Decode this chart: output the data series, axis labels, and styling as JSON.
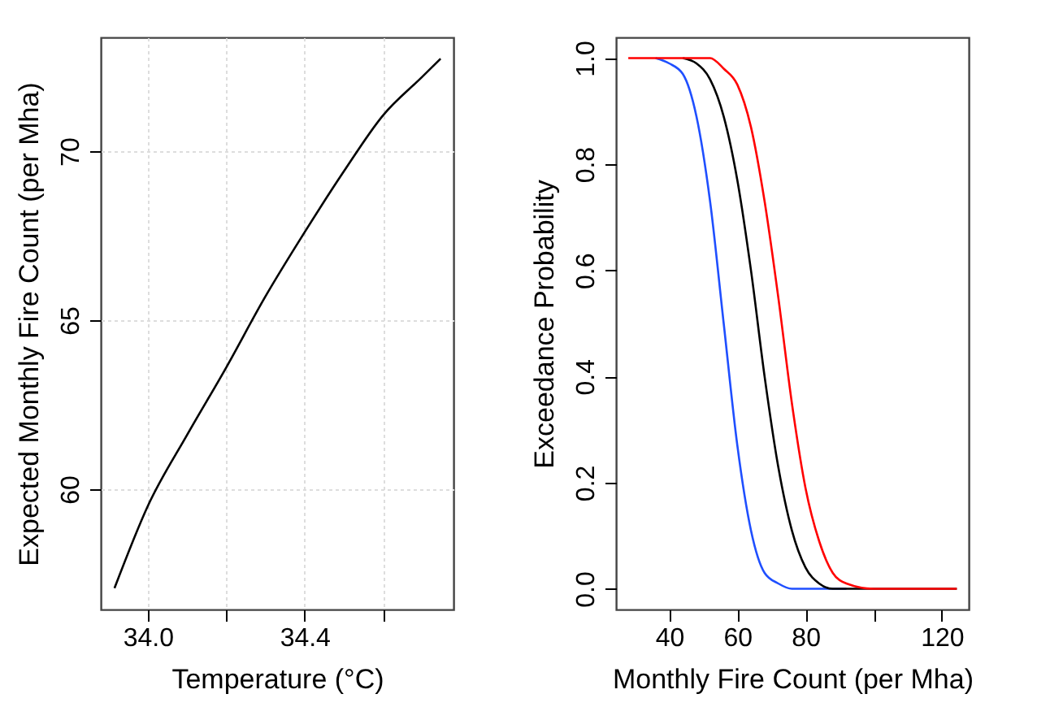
{
  "chart_data": [
    {
      "type": "line",
      "xlabel": "Temperature (°C)",
      "ylabel": "Expected Monthly Fire Count (per Mha)",
      "xlim": [
        33.88,
        34.78
      ],
      "ylim": [
        56.44,
        73.37
      ],
      "xticks": [
        {
          "value": 34.0,
          "label": "34.0"
        },
        {
          "value": 34.2,
          "label": null
        },
        34.4,
        {
          "value": 34.6,
          "label": null
        }
      ],
      "yticks": [
        60,
        65,
        70
      ],
      "grid": true,
      "x": [
        33.915,
        34.0,
        34.1,
        34.2,
        34.3,
        34.4,
        34.5,
        34.6,
        34.7,
        34.747
      ],
      "series": [
        {
          "color": "#000000",
          "values": [
            57.07,
            59.5,
            61.6,
            63.6,
            65.7,
            67.6,
            69.4,
            71.06,
            72.2,
            72.74
          ]
        }
      ]
    },
    {
      "type": "line",
      "xlabel": "Monthly Fire Count (per Mha)",
      "ylabel": "Exceedance Probability",
      "xlim": [
        24.4,
        127.9
      ],
      "ylim": [
        -0.039,
        1.039
      ],
      "xticks": [
        40,
        60,
        80,
        {
          "value": 100,
          "label": null
        },
        120
      ],
      "yticks": [
        {
          "value": 0,
          "label": "0.0"
        },
        0.2,
        0.4,
        0.6,
        0.8,
        {
          "value": 1,
          "label": "1.0"
        }
      ],
      "x": [
        28,
        36,
        40,
        44,
        48,
        52,
        56,
        60,
        64,
        68,
        72,
        76,
        80,
        84,
        88,
        92,
        100,
        110,
        124.4
      ],
      "series": [
        {
          "color": "#1f4fff",
          "values": [
            null,
            1.0,
            0.99,
            0.97,
            0.89,
            0.73,
            0.5,
            0.27,
            0.11,
            0.03,
            0.01,
            0.0,
            0.0,
            0.0,
            0.0,
            0.0,
            null,
            null,
            null
          ]
        },
        {
          "color": "#000000",
          "values": [
            null,
            null,
            null,
            1.0,
            0.99,
            0.96,
            0.89,
            0.77,
            0.6,
            0.4,
            0.23,
            0.11,
            0.04,
            0.01,
            0.0,
            0.0,
            0.0,
            0.0,
            0.0
          ]
        },
        {
          "color": "#ff0000",
          "values": [
            1.0,
            1.0,
            1.0,
            1.0,
            1.0,
            1.0,
            0.98,
            0.95,
            0.87,
            0.73,
            0.55,
            0.35,
            0.19,
            0.09,
            0.03,
            0.01,
            0.0,
            0.0,
            0.0
          ]
        }
      ]
    }
  ]
}
